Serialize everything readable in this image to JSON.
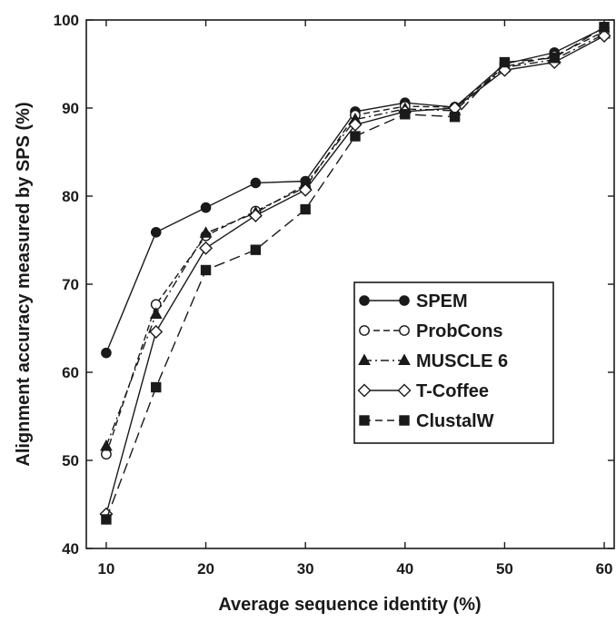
{
  "chart_data": {
    "type": "line",
    "xlabel": "Average sequence identity (%)",
    "ylabel": "Alignment accuracy measured by SPS (%)",
    "xlim": [
      8,
      61
    ],
    "ylim": [
      40,
      100
    ],
    "xticks": [
      10,
      20,
      30,
      40,
      50,
      60
    ],
    "yticks": [
      40,
      50,
      60,
      70,
      80,
      90,
      100
    ],
    "grid": false,
    "legend_position": "center-right",
    "x": [
      10,
      15,
      20,
      25,
      30,
      35,
      40,
      45,
      50,
      55,
      60
    ],
    "series": [
      {
        "name": "SPEM",
        "marker": "filled-circle",
        "dash": "solid",
        "values": [
          62.2,
          75.9,
          78.7,
          81.5,
          81.7,
          89.6,
          90.6,
          90.1,
          95.0,
          96.3,
          99.1
        ]
      },
      {
        "name": "ProbCons",
        "marker": "open-circle",
        "dash": "dashed",
        "values": [
          50.7,
          67.7,
          75.5,
          78.3,
          81.0,
          89.2,
          90.2,
          90.1,
          94.7,
          95.9,
          98.7
        ]
      },
      {
        "name": "MUSCLE 6",
        "marker": "filled-triangle",
        "dash": "dashdot",
        "values": [
          51.6,
          66.6,
          75.8,
          78.1,
          81.3,
          88.7,
          89.9,
          89.7,
          94.6,
          95.5,
          98.4
        ]
      },
      {
        "name": "T-Coffee",
        "marker": "open-diamond",
        "dash": "solid",
        "values": [
          43.9,
          64.6,
          74.1,
          77.8,
          80.7,
          88.1,
          89.6,
          90.0,
          94.3,
          95.2,
          98.2
        ]
      },
      {
        "name": "ClustalW",
        "marker": "filled-square",
        "dash": "longdash",
        "values": [
          43.3,
          58.3,
          71.6,
          73.9,
          78.5,
          86.8,
          89.3,
          89.0,
          95.2,
          95.7,
          99.2
        ]
      }
    ]
  }
}
